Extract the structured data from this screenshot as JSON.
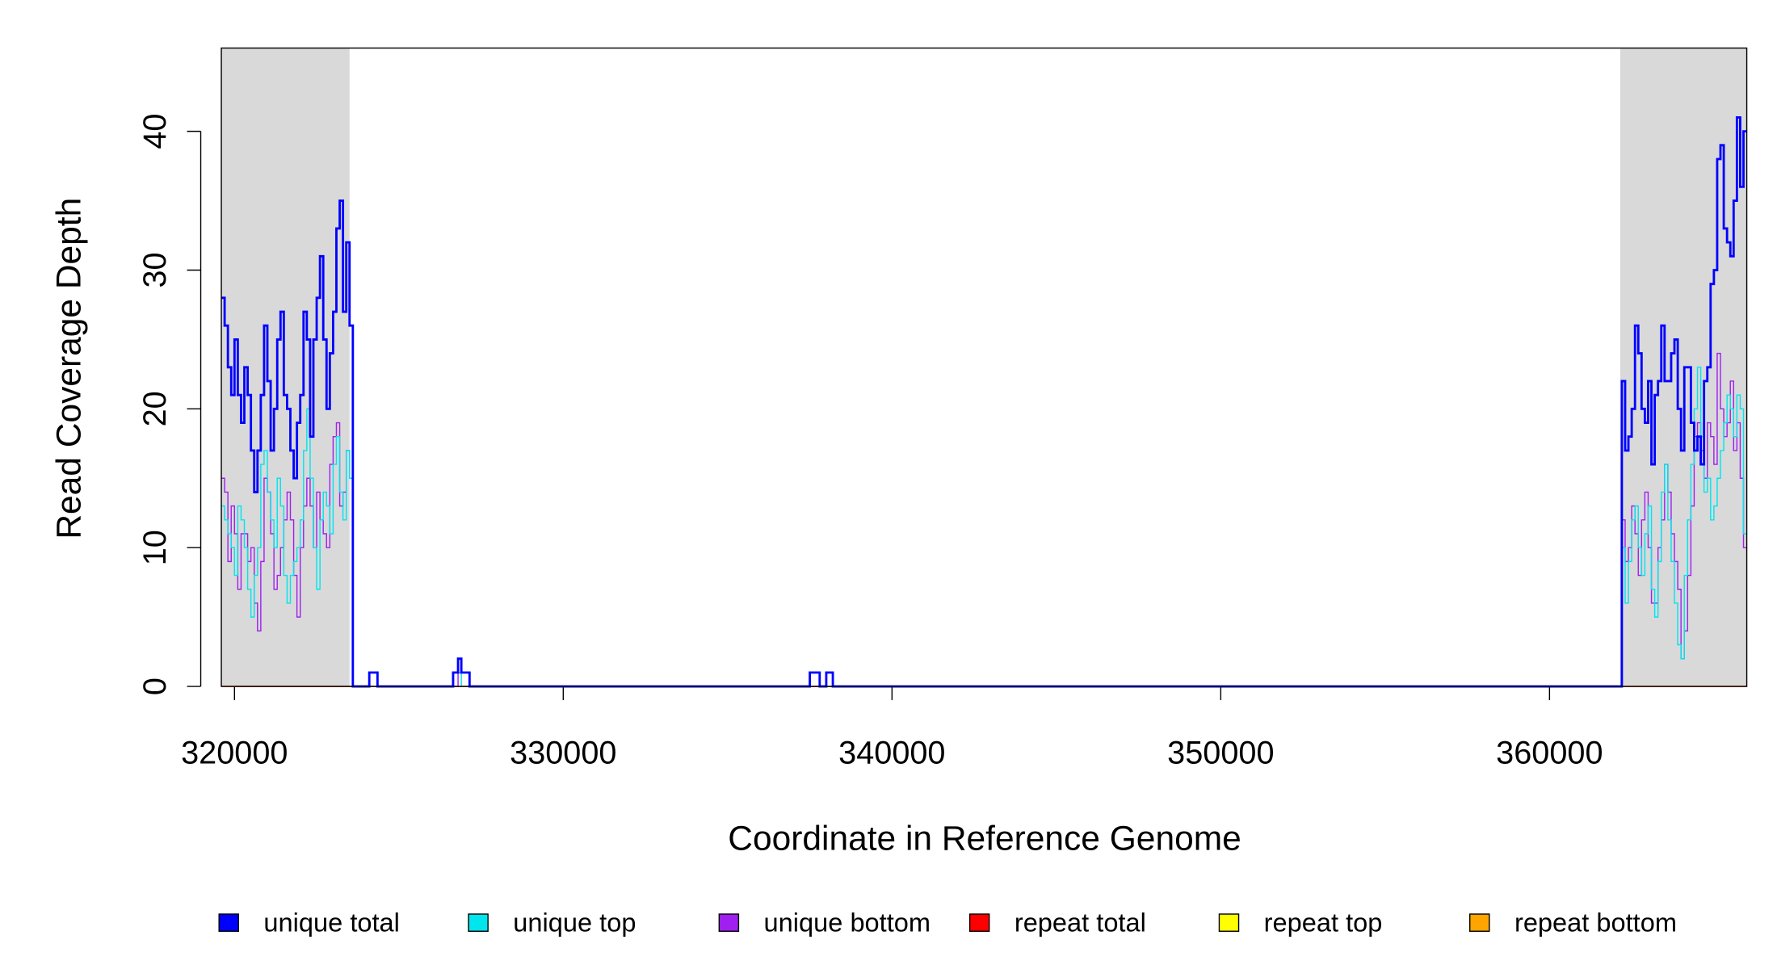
{
  "chart_data": {
    "type": "step",
    "xlabel": "Coordinate in Reference Genome",
    "ylabel": "Read Coverage Depth",
    "xlim": [
      319600,
      366000
    ],
    "ylim": [
      0,
      46
    ],
    "xticks": [
      320000,
      330000,
      340000,
      350000,
      360000
    ],
    "yticks": [
      0,
      10,
      20,
      30,
      40
    ],
    "shaded_regions": [
      [
        319600,
        323500
      ],
      [
        362150,
        366000
      ]
    ],
    "shade_color": "#d9d9d9",
    "x": [
      319600,
      319700,
      319800,
      319900,
      320000,
      320100,
      320200,
      320300,
      320400,
      320500,
      320600,
      320700,
      320800,
      320900,
      321000,
      321100,
      321200,
      321300,
      321400,
      321500,
      321600,
      321700,
      321800,
      321900,
      322000,
      322100,
      322200,
      322300,
      322400,
      322500,
      322600,
      322700,
      322800,
      322900,
      323000,
      323100,
      323200,
      323300,
      323400,
      323500,
      323600,
      324100,
      324350,
      326650,
      326800,
      326900,
      327150,
      337500,
      337800,
      338000,
      338200,
      362200,
      362300,
      362400,
      362500,
      362600,
      362700,
      362800,
      362900,
      363000,
      363100,
      363200,
      363300,
      363400,
      363500,
      363600,
      363700,
      363800,
      363900,
      364000,
      364100,
      364200,
      364300,
      364400,
      364500,
      364600,
      364700,
      364800,
      364900,
      365000,
      365100,
      365200,
      365300,
      365400,
      365500,
      365600,
      365700,
      365800,
      365900
    ],
    "series": [
      {
        "name": "unique total",
        "color": "#0000ff",
        "width": 2,
        "values": [
          28,
          26,
          23,
          21,
          25,
          21,
          19,
          23,
          21,
          17,
          14,
          17,
          21,
          26,
          22,
          17,
          20,
          25,
          27,
          21,
          20,
          17,
          15,
          19,
          21,
          27,
          25,
          18,
          25,
          28,
          31,
          25,
          20,
          24,
          27,
          33,
          35,
          27,
          32,
          26,
          0,
          1,
          0,
          1,
          2,
          1,
          0,
          1,
          0,
          1,
          0,
          22,
          17,
          18,
          20,
          26,
          24,
          20,
          19,
          22,
          16,
          21,
          22,
          26,
          22,
          22,
          24,
          25,
          20,
          17,
          23,
          23,
          19,
          17,
          18,
          16,
          22,
          23,
          29,
          30,
          38,
          39,
          33,
          32,
          31,
          35,
          41,
          36,
          40
        ]
      },
      {
        "name": "unique top",
        "color": "#00e5ee",
        "width": 1,
        "values": [
          13,
          12,
          11,
          10,
          8,
          13,
          12,
          10,
          7,
          5,
          8,
          10,
          16,
          17,
          14,
          12,
          10,
          15,
          13,
          8,
          6,
          8,
          9,
          10,
          12,
          17,
          20,
          15,
          10,
          7,
          12,
          14,
          13,
          11,
          16,
          18,
          14,
          12,
          17,
          15,
          0,
          0,
          0,
          1,
          1,
          0,
          0,
          1,
          0,
          0,
          0,
          10,
          6,
          9,
          12,
          13,
          10,
          8,
          11,
          13,
          7,
          5,
          9,
          14,
          16,
          12,
          9,
          6,
          3,
          2,
          8,
          12,
          16,
          20,
          23,
          18,
          14,
          15,
          12,
          13,
          15,
          17,
          19,
          21,
          20,
          18,
          21,
          20,
          11
        ]
      },
      {
        "name": "unique bottom",
        "color": "#a020f0",
        "width": 1,
        "values": [
          15,
          14,
          9,
          13,
          11,
          7,
          11,
          11,
          9,
          10,
          6,
          4,
          9,
          15,
          14,
          11,
          7,
          8,
          10,
          12,
          14,
          12,
          8,
          5,
          10,
          13,
          15,
          13,
          10,
          14,
          12,
          11,
          10,
          16,
          18,
          19,
          13,
          14,
          17,
          15,
          0,
          1,
          0,
          0,
          1,
          1,
          0,
          0,
          0,
          1,
          0,
          12,
          9,
          10,
          13,
          11,
          8,
          12,
          14,
          10,
          6,
          6,
          10,
          12,
          16,
          14,
          11,
          9,
          7,
          2,
          4,
          8,
          13,
          18,
          19,
          17,
          15,
          19,
          18,
          16,
          24,
          20,
          18,
          19,
          22,
          17,
          19,
          15,
          10
        ]
      },
      {
        "name": "repeat total",
        "color": "#ff0000",
        "width": 1,
        "x": [
          319600,
          366000
        ],
        "values": [
          0,
          0
        ]
      },
      {
        "name": "repeat top",
        "color": "#ffff00",
        "width": 1,
        "x": [
          319600,
          366000
        ],
        "values": [
          0,
          0
        ]
      },
      {
        "name": "repeat bottom",
        "color": "#ffa500",
        "width": 1,
        "x": [
          319600,
          366000
        ],
        "values": [
          0,
          0
        ]
      }
    ]
  }
}
